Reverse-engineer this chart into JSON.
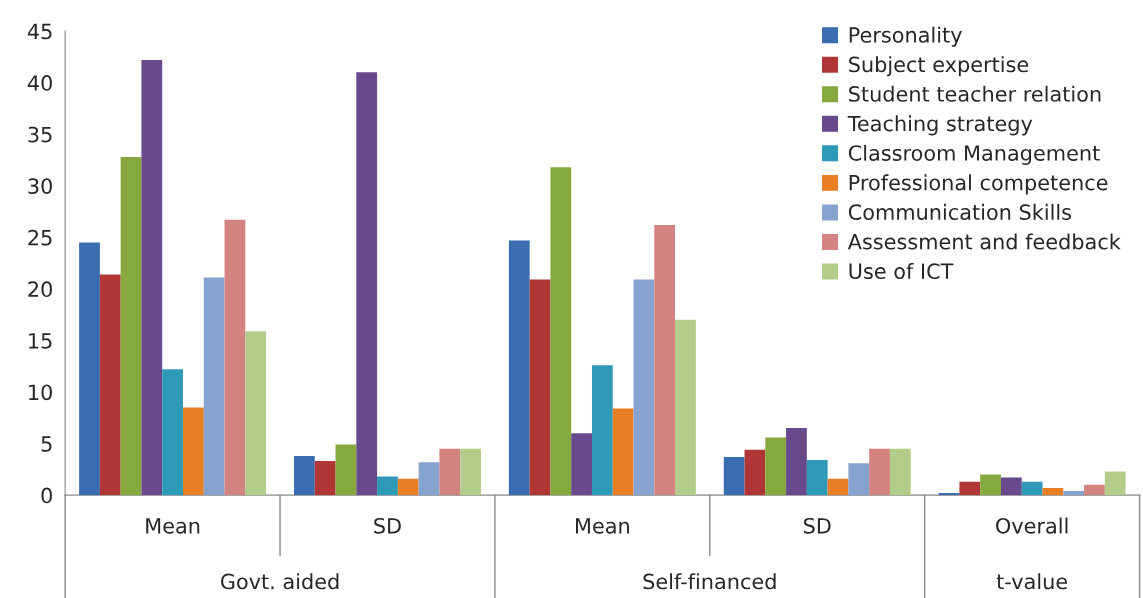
{
  "chart_data": {
    "type": "bar",
    "categories": [
      "Mean",
      "SD",
      "Mean",
      "SD",
      "Overall"
    ],
    "series": [
      {
        "name": "Personality",
        "color": "#3a6cb0",
        "values": [
          24.5,
          3.8,
          24.7,
          3.7,
          0.2
        ]
      },
      {
        "name": "Subject expertise",
        "color": "#b03535",
        "values": [
          21.4,
          3.3,
          20.9,
          4.4,
          1.3
        ]
      },
      {
        "name": "Student teacher relation",
        "color": "#85a83f",
        "values": [
          32.8,
          4.9,
          31.8,
          5.6,
          2.0
        ]
      },
      {
        "name": "Teaching strategy",
        "color": "#684a8c",
        "values": [
          42.2,
          41.0,
          6.0,
          6.5,
          1.7
        ]
      },
      {
        "name": "Classroom Management",
        "color": "#2e9ab8",
        "values": [
          12.2,
          1.8,
          12.6,
          3.4,
          1.3
        ]
      },
      {
        "name": "Professional competence",
        "color": "#e87f25",
        "values": [
          8.5,
          1.6,
          8.4,
          1.6,
          0.7
        ]
      },
      {
        "name": "Communication Skills",
        "color": "#86a3d0",
        "values": [
          21.1,
          3.2,
          20.9,
          3.1,
          0.4
        ]
      },
      {
        "name": "Assessment and feedback",
        "color": "#d48480",
        "values": [
          26.7,
          4.5,
          26.2,
          4.5,
          1.0
        ]
      },
      {
        "name": "Use of ICT",
        "color": "#b2cd8a",
        "values": [
          15.9,
          4.5,
          17.0,
          4.5,
          2.3
        ]
      }
    ],
    "annotations": [
      "Govt. aided",
      "Self-financed",
      "t-value"
    ],
    "ylim": [
      0,
      45
    ],
    "yticks": [
      0,
      5,
      10,
      15,
      20,
      25,
      30,
      35,
      40,
      45
    ],
    "grid": false,
    "legend": "top right"
  }
}
